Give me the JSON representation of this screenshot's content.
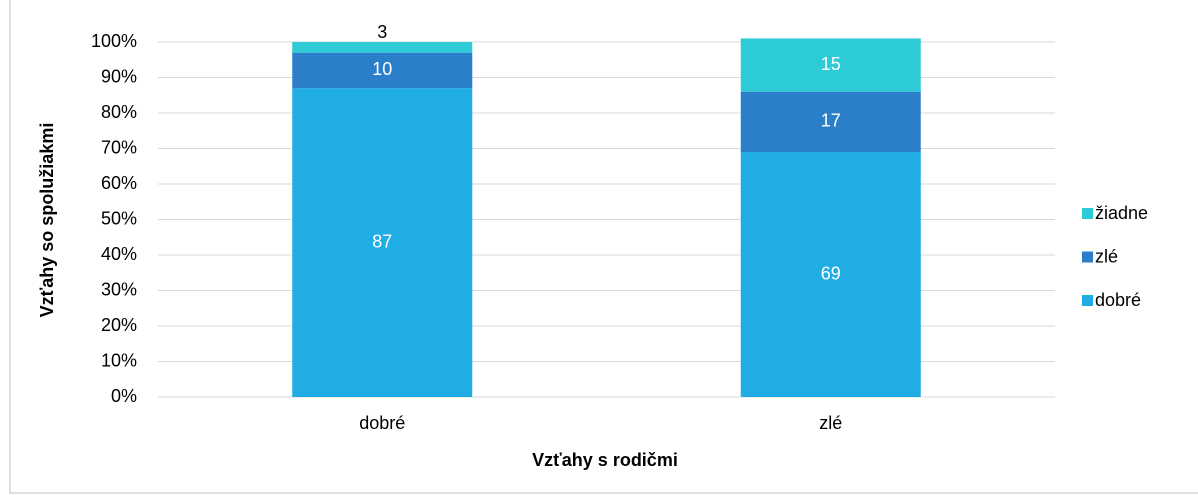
{
  "chart_data": {
    "type": "stacked_bar",
    "categories": [
      "dobré",
      "zlé"
    ],
    "series": [
      {
        "name": "dobré",
        "color": "#1fade4",
        "values": [
          87,
          69
        ]
      },
      {
        "name": "zlé",
        "color": "#2a7fc8",
        "values": [
          10,
          17
        ]
      },
      {
        "name": "žiadne",
        "color": "#2ccbd6",
        "values": [
          3,
          15
        ]
      }
    ],
    "ylim": [
      0,
      100
    ],
    "yticks": [
      {
        "value": 0,
        "label": "0%"
      },
      {
        "value": 10,
        "label": "10%"
      },
      {
        "value": 20,
        "label": "20%"
      },
      {
        "value": 30,
        "label": "30%"
      },
      {
        "value": 40,
        "label": "40%"
      },
      {
        "value": 50,
        "label": "50%"
      },
      {
        "value": 60,
        "label": "60%"
      },
      {
        "value": 70,
        "label": "70%"
      },
      {
        "value": 80,
        "label": "80%"
      },
      {
        "value": 90,
        "label": "90%"
      },
      {
        "value": 100,
        "label": "100%"
      }
    ],
    "xlabel": "Vzťahy s rodičmi",
    "ylabel": "Vzťahy so spolužiakmi",
    "grid": true,
    "legend": "right"
  }
}
